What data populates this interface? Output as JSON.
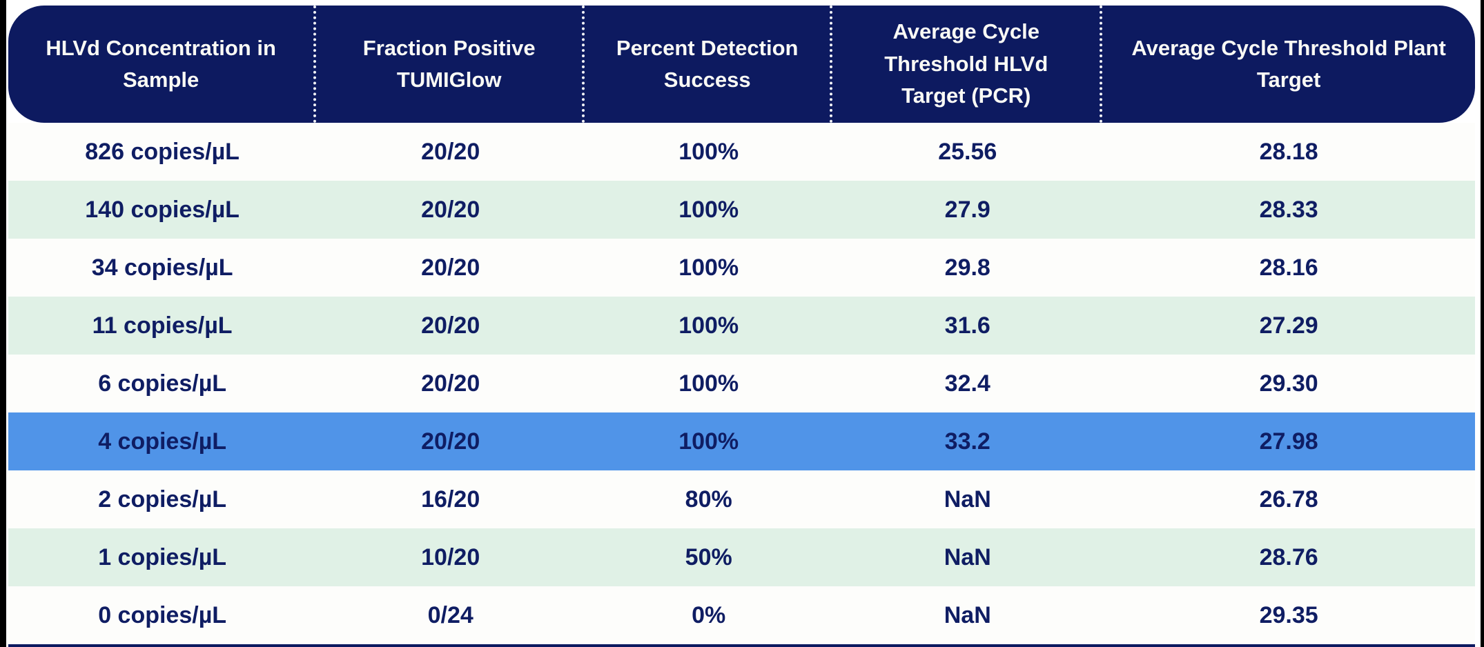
{
  "colors": {
    "header_background": "#0d1a60",
    "cell_text": "#0f1d63",
    "alt_row_green": "#e0f1e6",
    "highlight_row_blue": "#5094e8",
    "row_white": "#fdfdfb",
    "header_text": "#fafaf5",
    "edge_black": "#000000"
  },
  "table": {
    "headers": [
      "HLVd Concentration in Sample",
      "Fraction Positive TUMIGlow",
      "Percent Detection Success",
      "Average Cycle Threshold HLVd Target (PCR)",
      "Average Cycle Threshold Plant Target"
    ],
    "rows": [
      {
        "variant": "white",
        "cells": [
          "826 copies/µL",
          "20/20",
          "100%",
          "25.56",
          "28.18"
        ]
      },
      {
        "variant": "green",
        "cells": [
          "140 copies/µL",
          "20/20",
          "100%",
          "27.9",
          "28.33"
        ]
      },
      {
        "variant": "white",
        "cells": [
          "34 copies/µL",
          "20/20",
          "100%",
          "29.8",
          "28.16"
        ]
      },
      {
        "variant": "green",
        "cells": [
          "11 copies/µL",
          "20/20",
          "100%",
          "31.6",
          "27.29"
        ]
      },
      {
        "variant": "white",
        "cells": [
          "6 copies/µL",
          "20/20",
          "100%",
          "32.4",
          "29.30"
        ]
      },
      {
        "variant": "highlight",
        "cells": [
          "4 copies/µL",
          "20/20",
          "100%",
          "33.2",
          "27.98"
        ]
      },
      {
        "variant": "white",
        "cells": [
          "2 copies/µL",
          "16/20",
          "80%",
          "NaN",
          "26.78"
        ]
      },
      {
        "variant": "green",
        "cells": [
          "1 copies/µL",
          "10/20",
          "50%",
          "NaN",
          "28.76"
        ]
      },
      {
        "variant": "white",
        "cells": [
          "0 copies/µL",
          "0/24",
          "0%",
          "NaN",
          "29.35"
        ]
      }
    ]
  },
  "chart_data": {
    "type": "table",
    "title": "",
    "columns": [
      "HLVd Concentration in Sample",
      "Fraction Positive TUMIGlow",
      "Percent Detection Success",
      "Average Cycle Threshold HLVd Target (PCR)",
      "Average Cycle Threshold Plant Target"
    ],
    "rows": [
      [
        "826 copies/µL",
        "20/20",
        "100%",
        "25.56",
        "28.18"
      ],
      [
        "140 copies/µL",
        "20/20",
        "100%",
        "27.9",
        "28.33"
      ],
      [
        "34 copies/µL",
        "20/20",
        "100%",
        "29.8",
        "28.16"
      ],
      [
        "11 copies/µL",
        "20/20",
        "100%",
        "31.6",
        "27.29"
      ],
      [
        "6 copies/µL",
        "20/20",
        "100%",
        "32.4",
        "29.30"
      ],
      [
        "4 copies/µL",
        "20/20",
        "100%",
        "33.2",
        "27.98"
      ],
      [
        "2 copies/µL",
        "16/20",
        "80%",
        "NaN",
        "26.78"
      ],
      [
        "1 copies/µL",
        "10/20",
        "50%",
        "NaN",
        "28.76"
      ],
      [
        "0 copies/µL",
        "0/24",
        "0%",
        "NaN",
        "29.35"
      ]
    ],
    "highlighted_row": "4 copies/µL",
    "layout_hints": {
      "header_style": "dark navy pill with rounded corners and white dotted column separators",
      "row_striping": "white / light mint alternating, one blue highlighted row",
      "all_text_bold": true
    }
  }
}
